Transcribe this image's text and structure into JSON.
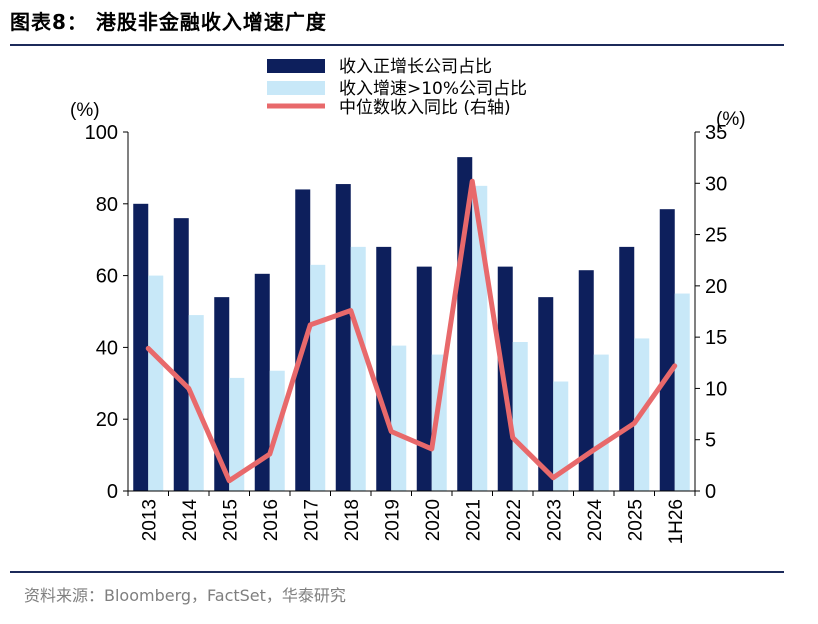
{
  "header": {
    "title": "图表8：  港股非金融收入增速广度"
  },
  "footer": {
    "source": "资料来源：Bloomberg，FactSet，华泰研究"
  },
  "colors": {
    "series1": "#0d1f5c",
    "series2": "#c8e8f8",
    "series3": "#e8696b",
    "rule": "#1c2a5a"
  },
  "chart_data": {
    "type": "bar",
    "categories": [
      "2013",
      "2014",
      "2015",
      "2016",
      "2017",
      "2018",
      "2019",
      "2020",
      "2021",
      "2022",
      "2023",
      "2024",
      "2025",
      "1H26"
    ],
    "series": [
      {
        "name": "收入正增长公司占比",
        "type": "bar",
        "axis": "left",
        "values": [
          80,
          76,
          54,
          60.5,
          84,
          85.5,
          68,
          62.5,
          93,
          62.5,
          54,
          61.5,
          68,
          78.5
        ]
      },
      {
        "name": "收入增速>10%公司占比",
        "type": "bar",
        "axis": "left",
        "values": [
          60,
          49,
          31.5,
          33.5,
          63,
          68,
          40.5,
          38,
          85,
          41.5,
          30.5,
          38,
          42.5,
          55
        ]
      },
      {
        "name": "中位数收入同比 (右轴)",
        "type": "line",
        "axis": "right",
        "values": [
          13.9,
          10,
          1,
          3.6,
          16.2,
          17.6,
          5.8,
          4.1,
          30.2,
          5.2,
          1.3,
          4,
          6.6,
          12.2
        ]
      }
    ],
    "ylabel_left": "(%)",
    "ylabel_right": "(%)",
    "ylim_left": [
      0,
      100
    ],
    "ylim_right": [
      0,
      35
    ],
    "yticks_left": [
      "0",
      "20",
      "40",
      "60",
      "80",
      "100"
    ],
    "yticks_right": [
      "0",
      "5",
      "10",
      "15",
      "20",
      "25",
      "30",
      "35"
    ],
    "grid": false,
    "legend_position": "top-center"
  }
}
